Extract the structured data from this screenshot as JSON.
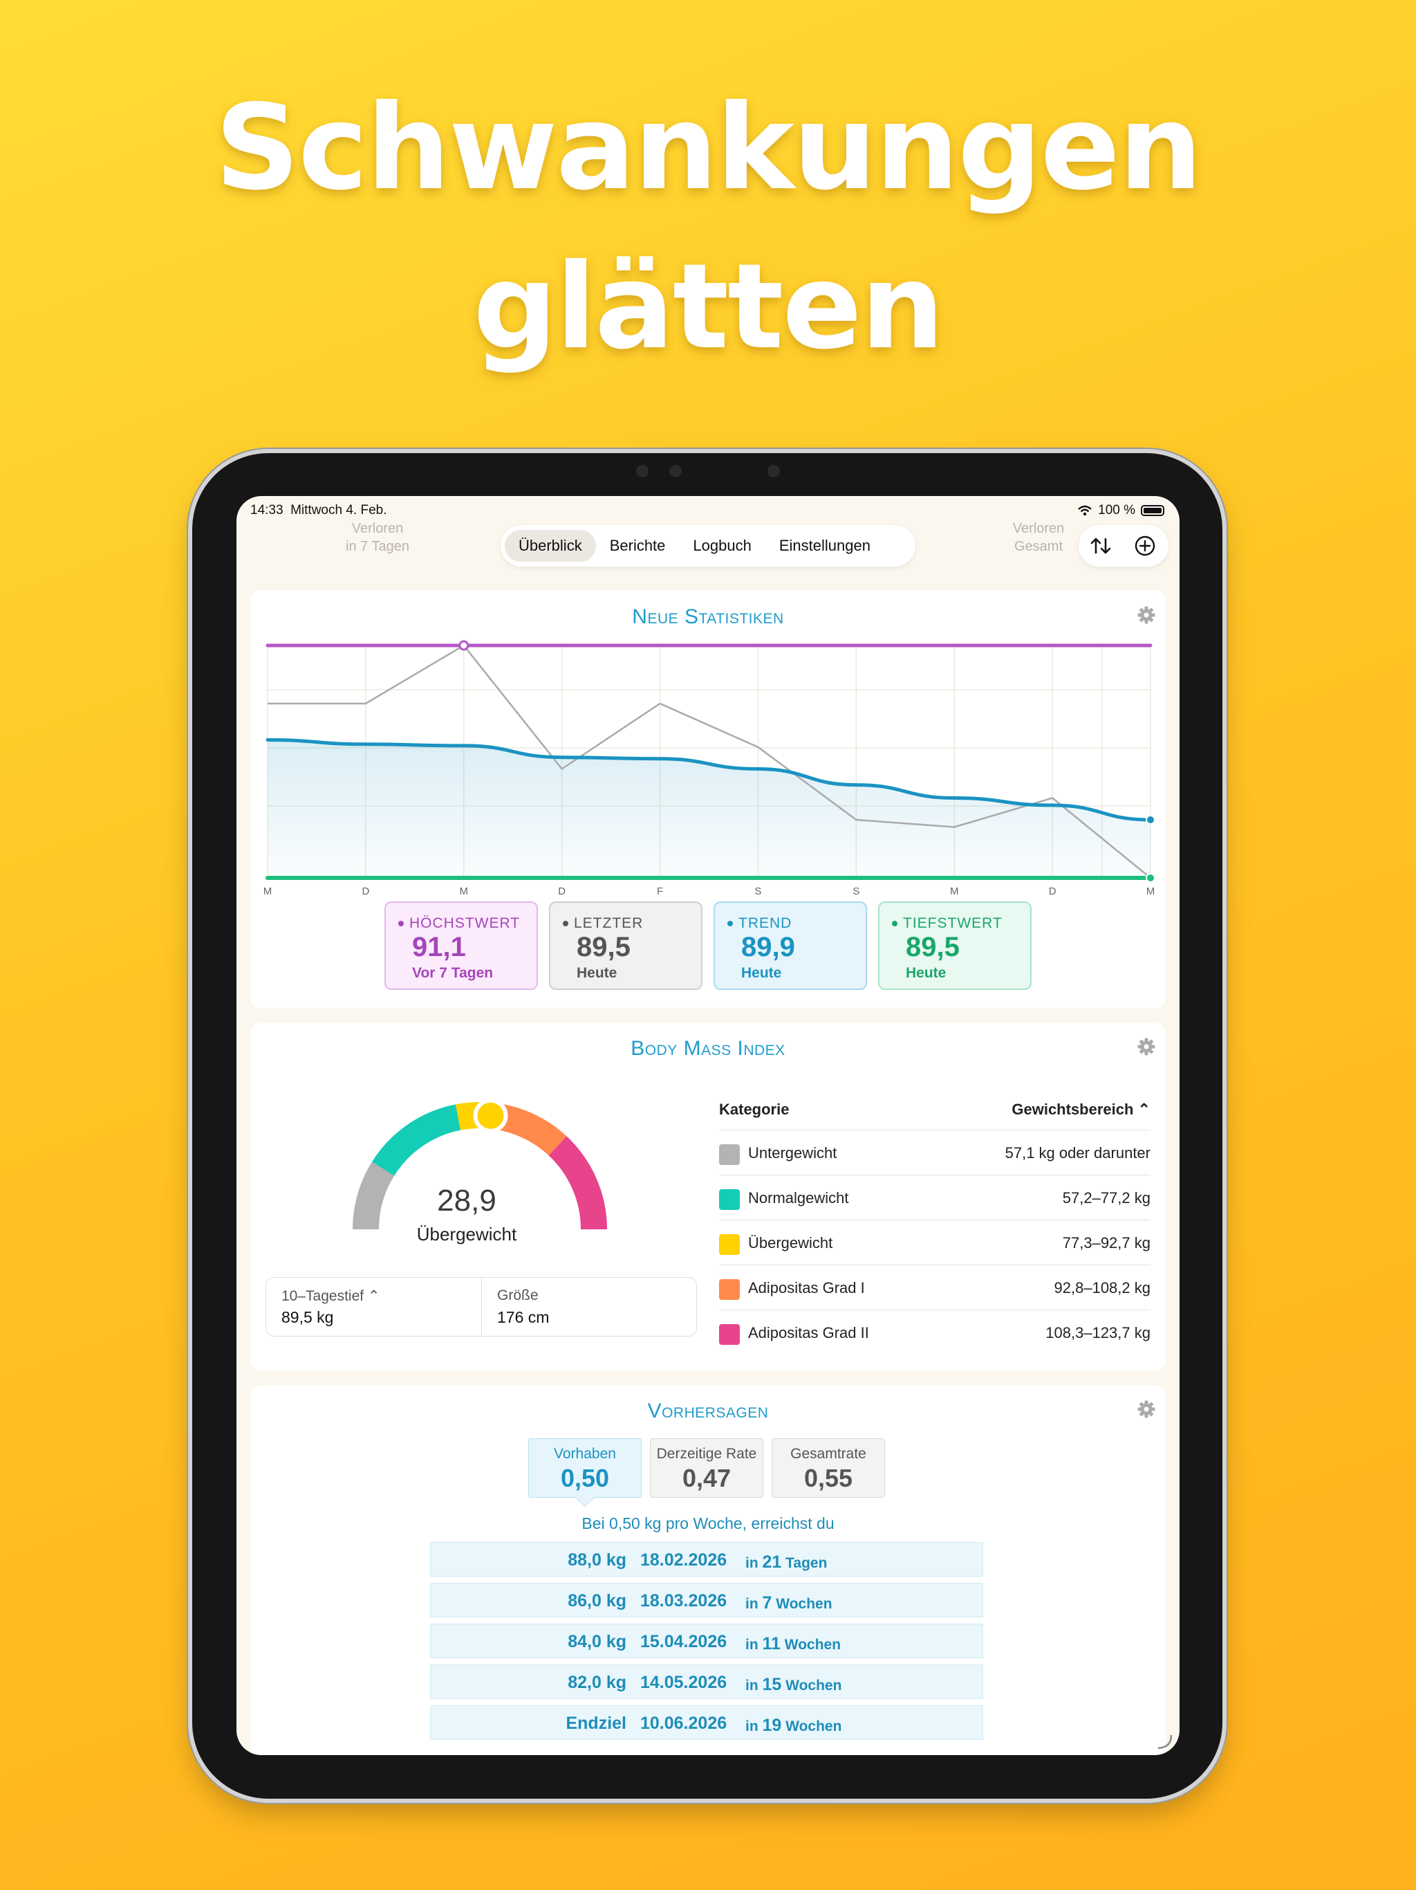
{
  "headline": {
    "line1": "Schwankungen",
    "line2": "glätten"
  },
  "status": {
    "time": "14:33",
    "date": "Mittwoch 4. Feb.",
    "battery": "100 %"
  },
  "header": {
    "left_label": "Verloren",
    "left_sub": "in 7 Tagen",
    "right_label": "Verloren",
    "right_sub": "Gesamt"
  },
  "nav": {
    "tabs": [
      "Überblick",
      "Berichte",
      "Logbuch",
      "Einstellungen"
    ],
    "active": 0
  },
  "statistics": {
    "title": "Neue Statistiken",
    "boxes": [
      {
        "label": "HÖCHSTWERT",
        "value": "91,1",
        "sub": "Vor 7 Tagen",
        "color": "#A446B8"
      },
      {
        "label": "LETZTER",
        "value": "89,5",
        "sub": "Heute",
        "color": "#555555"
      },
      {
        "label": "TREND",
        "value": "89,9",
        "sub": "Heute",
        "color": "#1A93C2"
      },
      {
        "label": "TIEFSTWERT",
        "value": "89,5",
        "sub": "Heute",
        "color": "#1AA66B"
      }
    ]
  },
  "chart_data": {
    "type": "line",
    "x": [
      "M",
      "D",
      "M",
      "D",
      "F",
      "S",
      "S",
      "M",
      "D",
      "M"
    ],
    "series": [
      {
        "values": [
          90.7,
          90.7,
          91.1,
          90.25,
          90.7,
          90.4,
          89.9,
          89.85,
          90.05,
          89.5
        ],
        "color": "#AAAAAA"
      },
      {
        "values": [
          90.45,
          90.42,
          90.41,
          90.33,
          90.32,
          90.25,
          90.14,
          90.05,
          90.0,
          89.9
        ],
        "color": "#1A93C2"
      }
    ],
    "max_line": 91.1,
    "min_line": 89.5,
    "ylim": [
      89.5,
      91.1
    ]
  },
  "bmi": {
    "title": "Body Mass Index",
    "value": "28,9",
    "category": "Übergewicht",
    "gauge_fraction": 0.53,
    "info": [
      {
        "label": "10–Tagestief ⌃",
        "value": "89,5 kg"
      },
      {
        "label": "Größe",
        "value": "176 cm"
      }
    ],
    "table_head": {
      "category": "Kategorie",
      "range": "Gewichtsbereich ⌃"
    },
    "categories": [
      {
        "name": "Untergewicht",
        "range": "57,1 kg oder darunter",
        "color": "#B3B3B3"
      },
      {
        "name": "Normalgewicht",
        "range": "57,2–77,2 kg",
        "color": "#14CDB6"
      },
      {
        "name": "Übergewicht",
        "range": "77,3–92,7 kg",
        "color": "#FFD200"
      },
      {
        "name": "Adipositas Grad I",
        "range": "92,8–108,2 kg",
        "color": "#FF8A4C"
      },
      {
        "name": "Adipositas Grad II",
        "range": "108,3–123,7 kg",
        "color": "#E8448C"
      }
    ]
  },
  "forecast": {
    "title": "Vorhersagen",
    "tabs": [
      {
        "label": "Vorhaben",
        "value": "0,50"
      },
      {
        "label": "Derzeitige Rate",
        "value": "0,47"
      },
      {
        "label": "Gesamtrate",
        "value": "0,55"
      }
    ],
    "line": "Bei 0,50 kg pro Woche, erreichst du",
    "rows": [
      {
        "weight": "88,0 kg",
        "date": "18.02.2026",
        "num": "21",
        "unit": "Tagen"
      },
      {
        "weight": "86,0 kg",
        "date": "18.03.2026",
        "num": "7",
        "unit": "Wochen"
      },
      {
        "weight": "84,0 kg",
        "date": "15.04.2026",
        "num": "11",
        "unit": "Wochen"
      },
      {
        "weight": "82,0 kg",
        "date": "14.05.2026",
        "num": "15",
        "unit": "Wochen"
      },
      {
        "weight": "Endziel",
        "date": "10.06.2026",
        "num": "19",
        "unit": "Wochen"
      }
    ]
  }
}
